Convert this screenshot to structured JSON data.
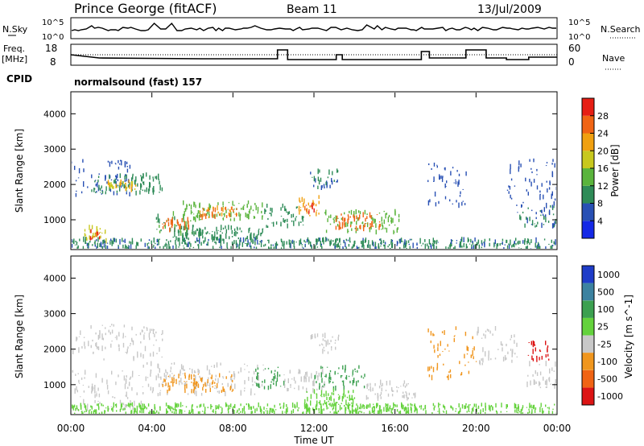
{
  "header": {
    "station": "Prince George (fitACF)",
    "beam": "Beam 11",
    "date": "13/Jul/2009"
  },
  "top_panels": {
    "nsky_label": "N.Sky",
    "nsky_ticks": [
      "10^5",
      "10^0"
    ],
    "nsearch_label": "N.Search",
    "nsearch_ticks": [
      "10^5",
      "10^0"
    ],
    "freq_label_1": "Freq.",
    "freq_label_2": "[MHz]",
    "freq_ticks": [
      "18",
      "8"
    ],
    "nave_label": "Nave",
    "nave_ticks": [
      "60",
      "0"
    ],
    "cpid_label": "CPID",
    "cpid_value": "normalsound (fast) 157"
  },
  "colors": {
    "power": [
      "#1428e6",
      "#2850b4",
      "#2e8b57",
      "#5ab43c",
      "#c8c81e",
      "#f0a010",
      "#f06414",
      "#e61e14"
    ],
    "velocity": [
      "#1e3cc8",
      "#3c82a0",
      "#3ca050",
      "#64d23c",
      "#c8c8c8",
      "#f0961e",
      "#f06414",
      "#dc1414"
    ]
  },
  "chart_data": [
    {
      "type": "heatmap",
      "name": "power",
      "ylabel": "Slant Range [km]",
      "yticks": [
        1000,
        2000,
        3000,
        4000
      ],
      "ylim": [
        180,
        4600
      ],
      "xticks": [
        "00:00",
        "04:00",
        "08:00",
        "12:00",
        "16:00",
        "20:00",
        "00:00"
      ],
      "xlim_hours": [
        0,
        24
      ],
      "colorbar_label": "Power [dB]",
      "colorbar_ticks": [
        28,
        24,
        20,
        16,
        12,
        8,
        4
      ],
      "colorbar_range": [
        0,
        32
      ],
      "patches": [
        {
          "t0": 0.0,
          "t1": 3.0,
          "r0": 1700,
          "r1": 2700,
          "v": 6
        },
        {
          "t0": 1.0,
          "t1": 4.5,
          "r0": 1750,
          "r1": 2300,
          "v": 10
        },
        {
          "t0": 1.8,
          "t1": 3.2,
          "r0": 1850,
          "r1": 2100,
          "v": 20
        },
        {
          "t0": 0.6,
          "t1": 1.8,
          "r0": 400,
          "r1": 800,
          "v": 18
        },
        {
          "t0": 0.9,
          "t1": 1.4,
          "r0": 450,
          "r1": 700,
          "v": 28
        },
        {
          "t0": 4.2,
          "t1": 6.2,
          "r0": 600,
          "r1": 1200,
          "v": 12
        },
        {
          "t0": 4.5,
          "t1": 5.8,
          "r0": 700,
          "r1": 1050,
          "v": 26
        },
        {
          "t0": 5.5,
          "t1": 9.5,
          "r0": 1000,
          "r1": 1500,
          "v": 14
        },
        {
          "t0": 6.2,
          "t1": 8.2,
          "r0": 1050,
          "r1": 1350,
          "v": 24
        },
        {
          "t0": 5.0,
          "t1": 9.5,
          "r0": 450,
          "r1": 800,
          "v": 10
        },
        {
          "t0": 9.5,
          "t1": 11.5,
          "r0": 800,
          "r1": 1400,
          "v": 10
        },
        {
          "t0": 11.2,
          "t1": 12.3,
          "r0": 1050,
          "r1": 1650,
          "v": 22
        },
        {
          "t0": 11.5,
          "t1": 12.0,
          "r0": 1150,
          "r1": 1450,
          "v": 28
        },
        {
          "t0": 12.5,
          "t1": 16.2,
          "r0": 650,
          "r1": 1250,
          "v": 14
        },
        {
          "t0": 13.0,
          "t1": 15.3,
          "r0": 750,
          "r1": 1150,
          "v": 26
        },
        {
          "t0": 11.8,
          "t1": 13.2,
          "r0": 1900,
          "r1": 2400,
          "v": 8
        },
        {
          "t0": 17.5,
          "t1": 19.5,
          "r0": 1400,
          "r1": 2600,
          "v": 6
        },
        {
          "t0": 21.5,
          "t1": 24.0,
          "r0": 1400,
          "r1": 2700,
          "v": 6
        },
        {
          "t0": 22.0,
          "t1": 24.0,
          "r0": 800,
          "r1": 1400,
          "v": 8
        },
        {
          "t0": 0.0,
          "t1": 24.0,
          "r0": 180,
          "r1": 450,
          "v": 9
        }
      ]
    },
    {
      "type": "heatmap",
      "name": "velocity",
      "ylabel": "Slant Range [km]",
      "yticks": [
        1000,
        2000,
        3000,
        4000
      ],
      "ylim": [
        180,
        4600
      ],
      "xticks": [
        "00:00",
        "04:00",
        "08:00",
        "12:00",
        "16:00",
        "20:00",
        "00:00"
      ],
      "xlim_hours": [
        0,
        24
      ],
      "xlabel": "Time UT",
      "colorbar_label": "Velocity [m s^-1]",
      "colorbar_ticks": [
        "1000",
        "500",
        "100",
        "25",
        "-25",
        "-100",
        "-500",
        "-1000"
      ],
      "patches": [
        {
          "t0": 0.0,
          "t1": 4.5,
          "r0": 1700,
          "r1": 2700,
          "v": 0
        },
        {
          "t0": 0.0,
          "t1": 3.5,
          "r0": 300,
          "r1": 1400,
          "v": 0
        },
        {
          "t0": 3.5,
          "t1": 9.5,
          "r0": 700,
          "r1": 1600,
          "v": 5
        },
        {
          "t0": 4.5,
          "t1": 8.0,
          "r0": 800,
          "r1": 1300,
          "v": -100
        },
        {
          "t0": 9.0,
          "t1": 10.5,
          "r0": 900,
          "r1": 1500,
          "v": 100
        },
        {
          "t0": 10.5,
          "t1": 12.5,
          "r0": 800,
          "r1": 1400,
          "v": 0
        },
        {
          "t0": 12.0,
          "t1": 14.5,
          "r0": 900,
          "r1": 1500,
          "v": 100
        },
        {
          "t0": 11.5,
          "t1": 14.0,
          "r0": 450,
          "r1": 850,
          "v": 200
        },
        {
          "t0": 14.5,
          "t1": 17.0,
          "r0": 600,
          "r1": 1100,
          "v": 0
        },
        {
          "t0": 17.5,
          "t1": 20.0,
          "r0": 1200,
          "r1": 2600,
          "v": -100
        },
        {
          "t0": 20.0,
          "t1": 22.0,
          "r0": 1500,
          "r1": 2600,
          "v": 0
        },
        {
          "t0": 22.5,
          "t1": 23.6,
          "r0": 1700,
          "r1": 2200,
          "v": -800
        },
        {
          "t0": 22.5,
          "t1": 24.0,
          "r0": 900,
          "r1": 1600,
          "v": 0
        },
        {
          "t0": 11.8,
          "t1": 13.2,
          "r0": 1900,
          "r1": 2400,
          "v": 0
        },
        {
          "t0": 0.0,
          "t1": 24.0,
          "r0": 180,
          "r1": 450,
          "v": 200
        }
      ]
    }
  ]
}
